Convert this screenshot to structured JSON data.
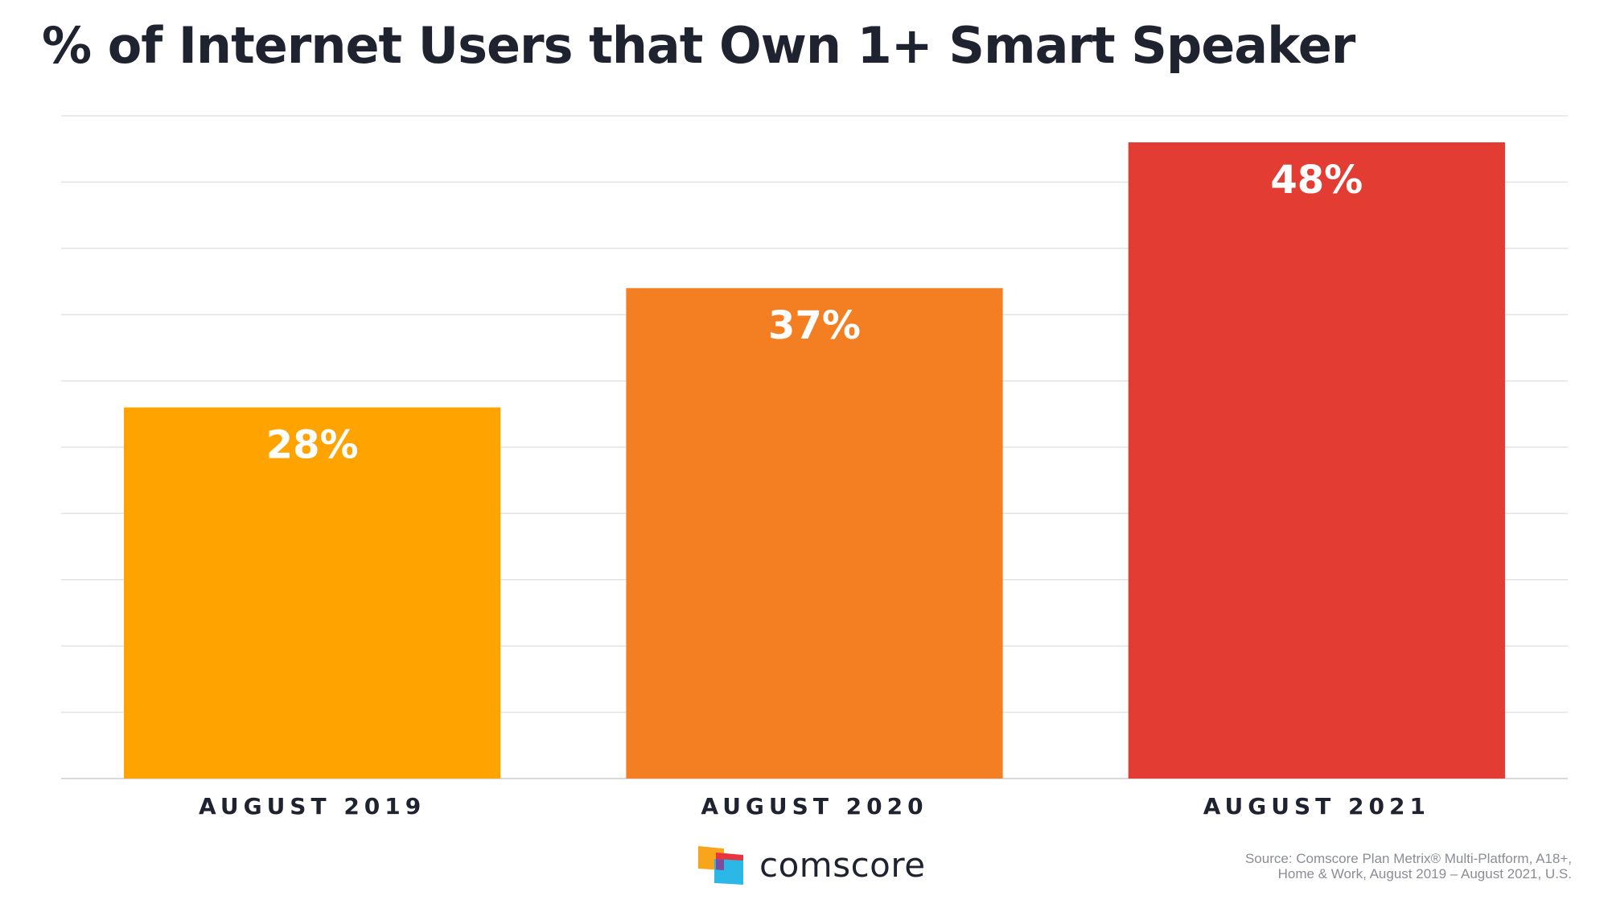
{
  "chart_data": {
    "type": "bar",
    "title": "% of Internet Users that Own 1+ Smart Speaker",
    "categories": [
      "AUGUST 2019",
      "AUGUST 2020",
      "AUGUST 2021"
    ],
    "values": [
      28,
      37,
      48
    ],
    "data_labels": [
      "28%",
      "37%",
      "48%"
    ],
    "colors": [
      "#FFA300",
      "#F47F22",
      "#E23C33"
    ],
    "xlabel": "",
    "ylabel": "",
    "ylim": [
      0,
      50
    ],
    "grid": true,
    "grid_step": 5,
    "legend": "none"
  },
  "footer": {
    "logo_text": "comscore",
    "source_line1": "Source: Comscore Plan Metrix® Multi-Platform, A18+,",
    "source_line2": "Home & Work, August 2019 – August 2021, U.S."
  },
  "colors": {
    "title": "#1f2330",
    "grid": "#e3e3e3",
    "axis_label": "#1f2330",
    "source": "#8a8d96",
    "logo_orange": "#F8A51B",
    "logo_red": "#E8343F",
    "logo_blue": "#2CB8E6"
  }
}
